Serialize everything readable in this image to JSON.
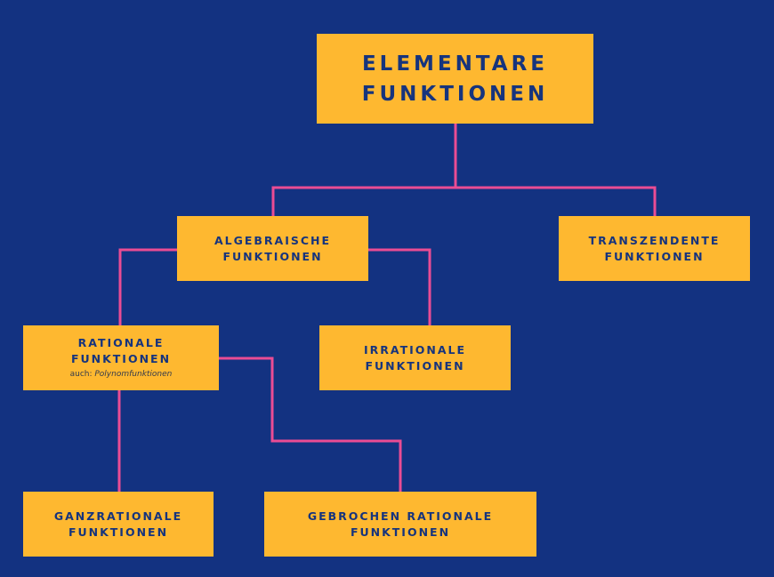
{
  "diagram": {
    "root": {
      "line1": "ELEMENTARE",
      "line2": "FUNKTIONEN"
    },
    "algebraic": {
      "line1": "ALGEBRAISCHE",
      "line2": "FUNKTIONEN"
    },
    "transcendent": {
      "line1": "TRANSZENDENTE",
      "line2": "FUNKTIONEN"
    },
    "rational": {
      "line1": "RATIONALE",
      "line2": "FUNKTIONEN",
      "note_prefix": "auch: ",
      "note_alt": "Polynomfunktionen"
    },
    "irrational": {
      "line1": "IRRATIONALE",
      "line2": "FUNKTIONEN"
    },
    "whole_rational": {
      "line1": "GANZRATIONALE",
      "line2": "FUNKTIONEN"
    },
    "broken_rational": {
      "line1": "GEBROCHEN RATIONALE",
      "line2": "FUNKTIONEN"
    }
  },
  "colors": {
    "background": "#133281",
    "box": "#feb830",
    "text": "#16347d",
    "connector": "#ea4c94"
  }
}
